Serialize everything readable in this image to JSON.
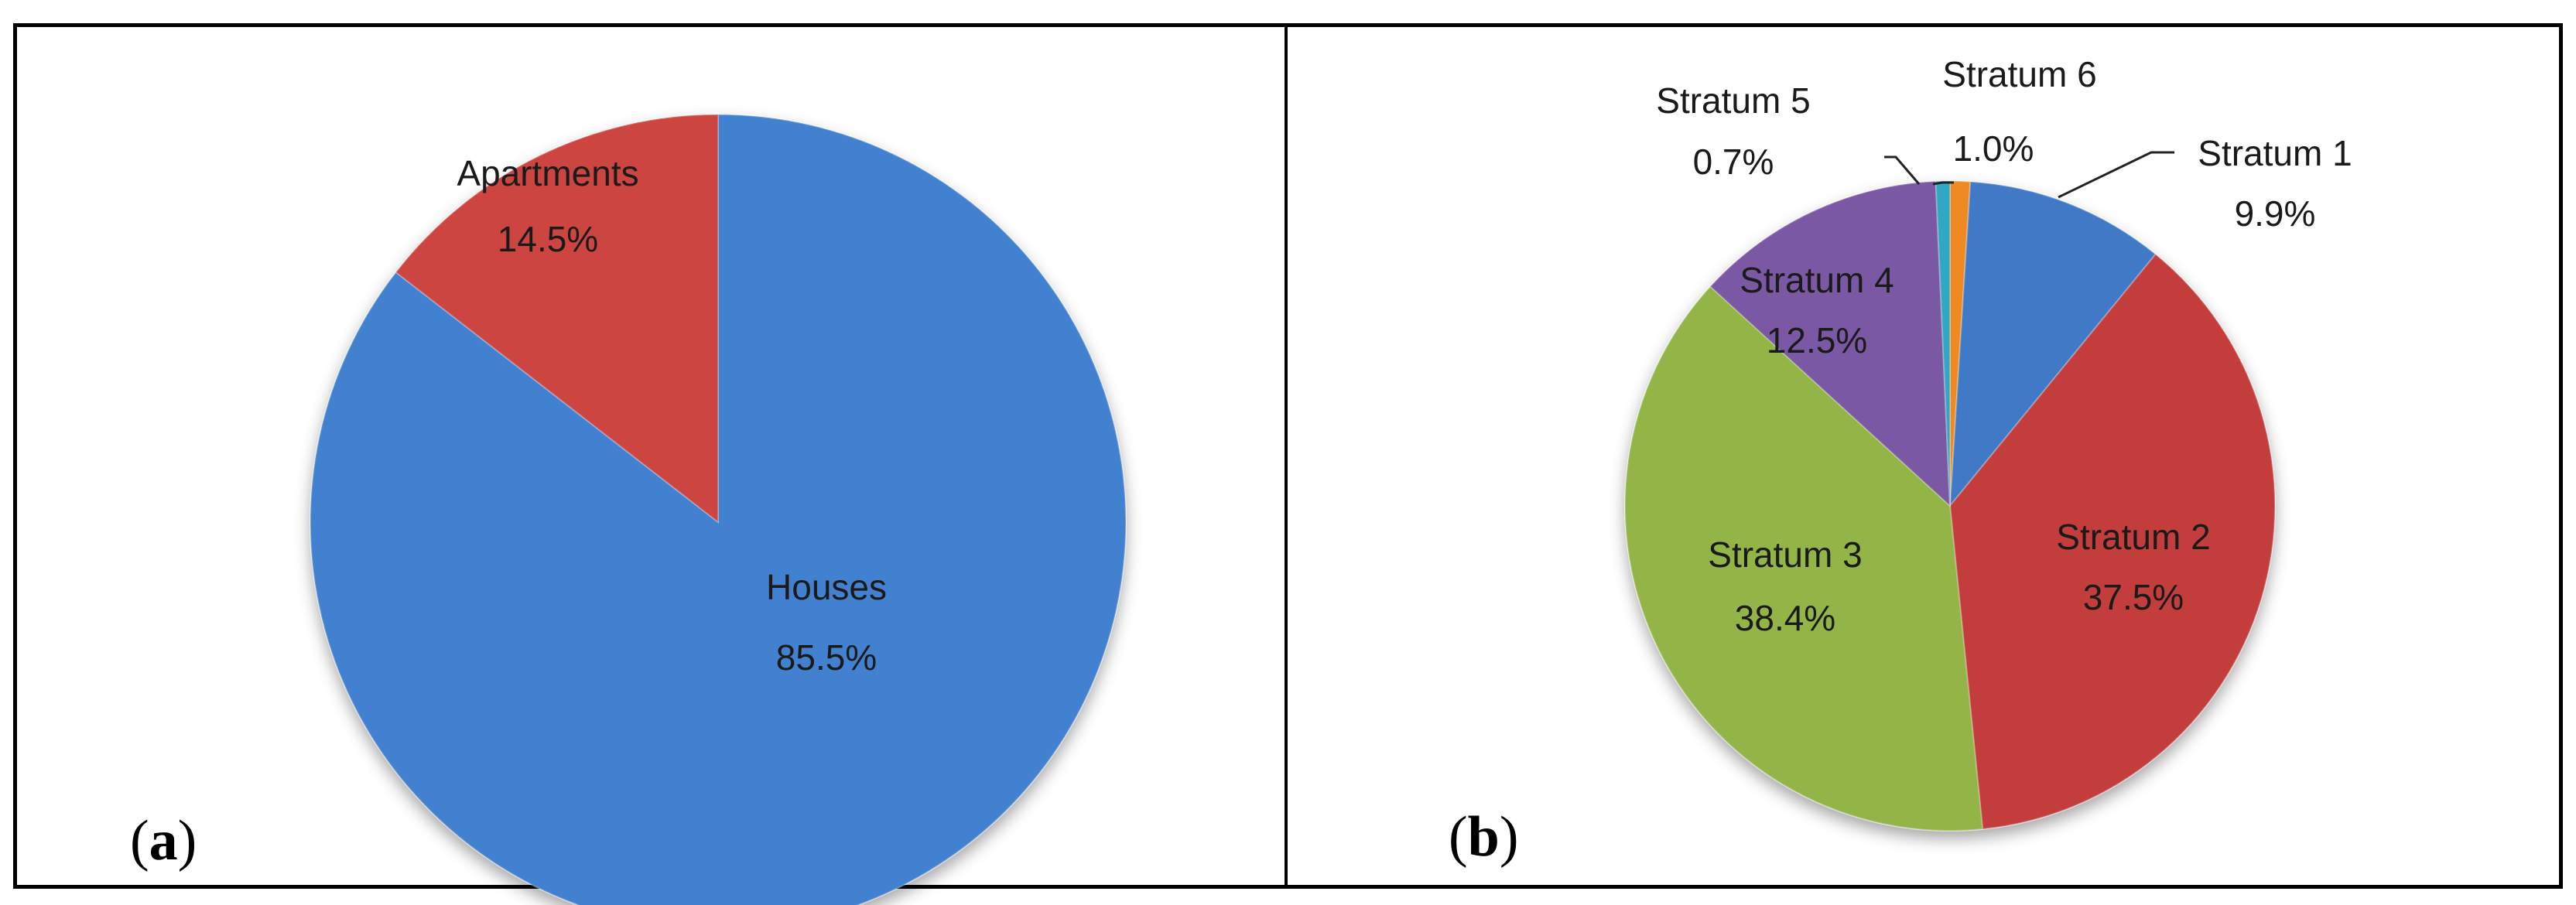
{
  "figure": {
    "panels": [
      {
        "id": "a",
        "label_open": "(",
        "label_letter": "a",
        "label_close": ")"
      },
      {
        "id": "b",
        "label_open": "(",
        "label_letter": "b",
        "label_close": ")"
      }
    ]
  },
  "chart_data": [
    {
      "type": "pie",
      "panel": "(a)",
      "title": "",
      "categories": [
        "Houses",
        "Apartments"
      ],
      "values": [
        85.5,
        14.5
      ],
      "labels": [
        "85.5%",
        "14.5%"
      ],
      "colors": [
        "#4281cf",
        "#cd4441"
      ],
      "legend": null
    },
    {
      "type": "pie",
      "panel": "(b)",
      "title": "",
      "categories": [
        "Stratum 1",
        "Stratum 2",
        "Stratum 3",
        "Stratum 4",
        "Stratum 5",
        "Stratum 6"
      ],
      "values": [
        9.9,
        37.5,
        38.4,
        12.5,
        0.7,
        1.0
      ],
      "labels": [
        "9.9%",
        "37.5%",
        "38.4%",
        "12.5%",
        "0.7%",
        "1.0%"
      ],
      "colors": [
        "#3f7ac6",
        "#c23d3a",
        "#93b446",
        "#7a59a3",
        "#33a7c2",
        "#ef8a23"
      ],
      "legend": null
    }
  ]
}
